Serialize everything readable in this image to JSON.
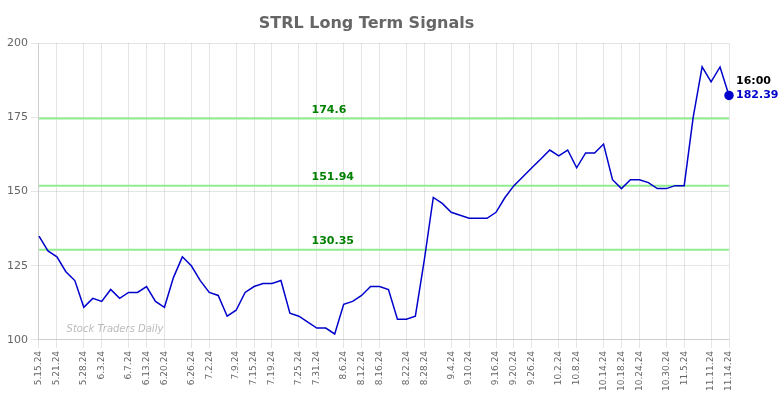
{
  "chart_data": {
    "type": "line",
    "title": "STRL Long Term Signals",
    "watermark": "Stock Traders Daily",
    "categories": [
      "5.15.24",
      null,
      "5.21.24",
      null,
      null,
      "5.28.24",
      null,
      "6.3.24",
      null,
      null,
      "6.7.24",
      null,
      "6.13.24",
      null,
      "6.20.24",
      null,
      null,
      "6.26.24",
      null,
      "7.2.24",
      null,
      null,
      "7.9.24",
      null,
      "7.15.24",
      null,
      "7.19.24",
      null,
      null,
      "7.25.24",
      null,
      "7.31.24",
      null,
      null,
      "8.6.24",
      null,
      "8.12.24",
      null,
      "8.16.24",
      null,
      null,
      "8.22.24",
      null,
      "8.28.24",
      null,
      null,
      "9.4.24",
      null,
      "9.10.24",
      null,
      null,
      "9.16.24",
      null,
      "9.20.24",
      null,
      "9.26.24",
      null,
      null,
      "10.2.24",
      null,
      "10.8.24",
      null,
      null,
      "10.14.24",
      null,
      "10.18.24",
      null,
      "10.24.24",
      null,
      null,
      "10.30.24",
      null,
      "11.5.24",
      null,
      null,
      "11.11.24",
      null,
      "11.14.24"
    ],
    "values": [
      135,
      130,
      128,
      123,
      120,
      111,
      114,
      113,
      117,
      114,
      116,
      116,
      118,
      113,
      111,
      121,
      128,
      125,
      120,
      116,
      115,
      108,
      110,
      116,
      118,
      119,
      119,
      120,
      109,
      108,
      106,
      104,
      104,
      102,
      112,
      113,
      115,
      118,
      118,
      117,
      107,
      107,
      108,
      127,
      148,
      146,
      143,
      142,
      141,
      141,
      141,
      143,
      148,
      152,
      155,
      158,
      161,
      164,
      162,
      164,
      158,
      163,
      163,
      166,
      154,
      151,
      154,
      154,
      153,
      151,
      151,
      152,
      152,
      175,
      192,
      187,
      192,
      182.39
    ],
    "color": "#0000CC",
    "hlines": [
      {
        "y": 130.35,
        "label": "130.35",
        "color": "#90EE90",
        "label_color": "#008000"
      },
      {
        "y": 151.94,
        "label": "151.94",
        "color": "#90EE90",
        "label_color": "#008000"
      },
      {
        "y": 174.6,
        "label": "174.6",
        "color": "#90EE90",
        "label_color": "#008000"
      }
    ],
    "last_label": "16:00",
    "last_value_label": "182.39",
    "ylim": [
      100,
      200
    ],
    "yticks": [
      100,
      125,
      150,
      175,
      200
    ],
    "grid": true
  }
}
